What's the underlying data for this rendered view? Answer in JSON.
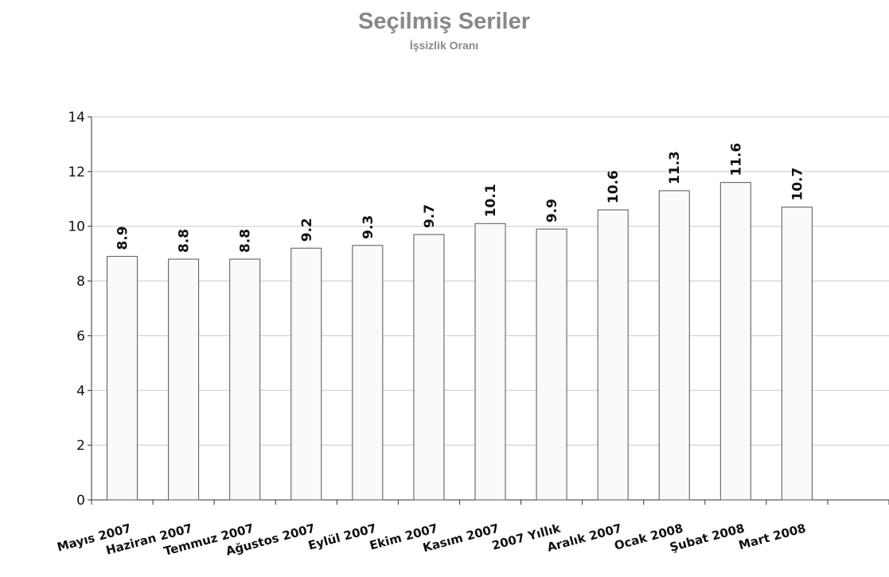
{
  "chart_data": {
    "type": "bar",
    "title": "Seçilmiş Seriler",
    "subtitle": "İşsizlik Oranı",
    "categories": [
      "Mayıs 2007",
      "Haziran 2007",
      "Temmuz 2007",
      "Ağustos 2007",
      "Eylül 2007",
      "Ekim 2007",
      "Kasım 2007",
      "2007 Yıllık",
      "Aralık 2007",
      "Ocak 2008",
      "Şubat 2008",
      "Mart 2008",
      null
    ],
    "values": [
      8.9,
      8.8,
      8.8,
      9.2,
      9.3,
      9.7,
      10.1,
      9.9,
      10.6,
      11.3,
      11.6,
      10.7,
      null
    ],
    "color": "#fafafa",
    "ylim": [
      0,
      14
    ],
    "yticks": [
      0,
      2,
      4,
      6,
      8,
      10,
      12,
      14
    ],
    "grid": true
  }
}
